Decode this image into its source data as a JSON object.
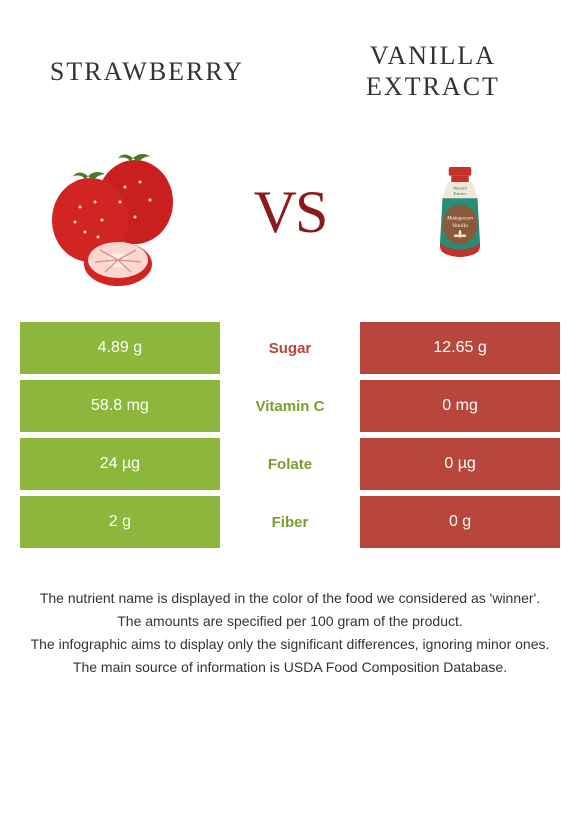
{
  "header": {
    "left_title": "STRAWBERRY",
    "right_title": "VANILLA EXTRACT",
    "vs": "VS"
  },
  "colors": {
    "green": "#8db63c",
    "green_text": "#7a9e2e",
    "red": "#b8463c",
    "red_text": "#b8463c",
    "vs_color": "#8b1a1a"
  },
  "rows": [
    {
      "left": "4.89 g",
      "mid": "Sugar",
      "right": "12.65 g",
      "left_bg": "#8db63c",
      "right_bg": "#b8463c",
      "mid_color": "#b8463c"
    },
    {
      "left": "58.8 mg",
      "mid": "Vitamin C",
      "right": "0 mg",
      "left_bg": "#8db63c",
      "right_bg": "#b8463c",
      "mid_color": "#7a9e2e"
    },
    {
      "left": "24 µg",
      "mid": "Folate",
      "right": "0 µg",
      "left_bg": "#8db63c",
      "right_bg": "#b8463c",
      "mid_color": "#7a9e2e"
    },
    {
      "left": "2 g",
      "mid": "Fiber",
      "right": "0 g",
      "left_bg": "#8db63c",
      "right_bg": "#b8463c",
      "mid_color": "#7a9e2e"
    }
  ],
  "footnotes": [
    "The nutrient name is displayed in the color of the food we considered as 'winner'.",
    "The amounts are specified per 100 gram of the product.",
    "The infographic aims to display only the significant differences, ignoring minor ones.",
    "The main source of information is USDA Food Composition Database."
  ]
}
